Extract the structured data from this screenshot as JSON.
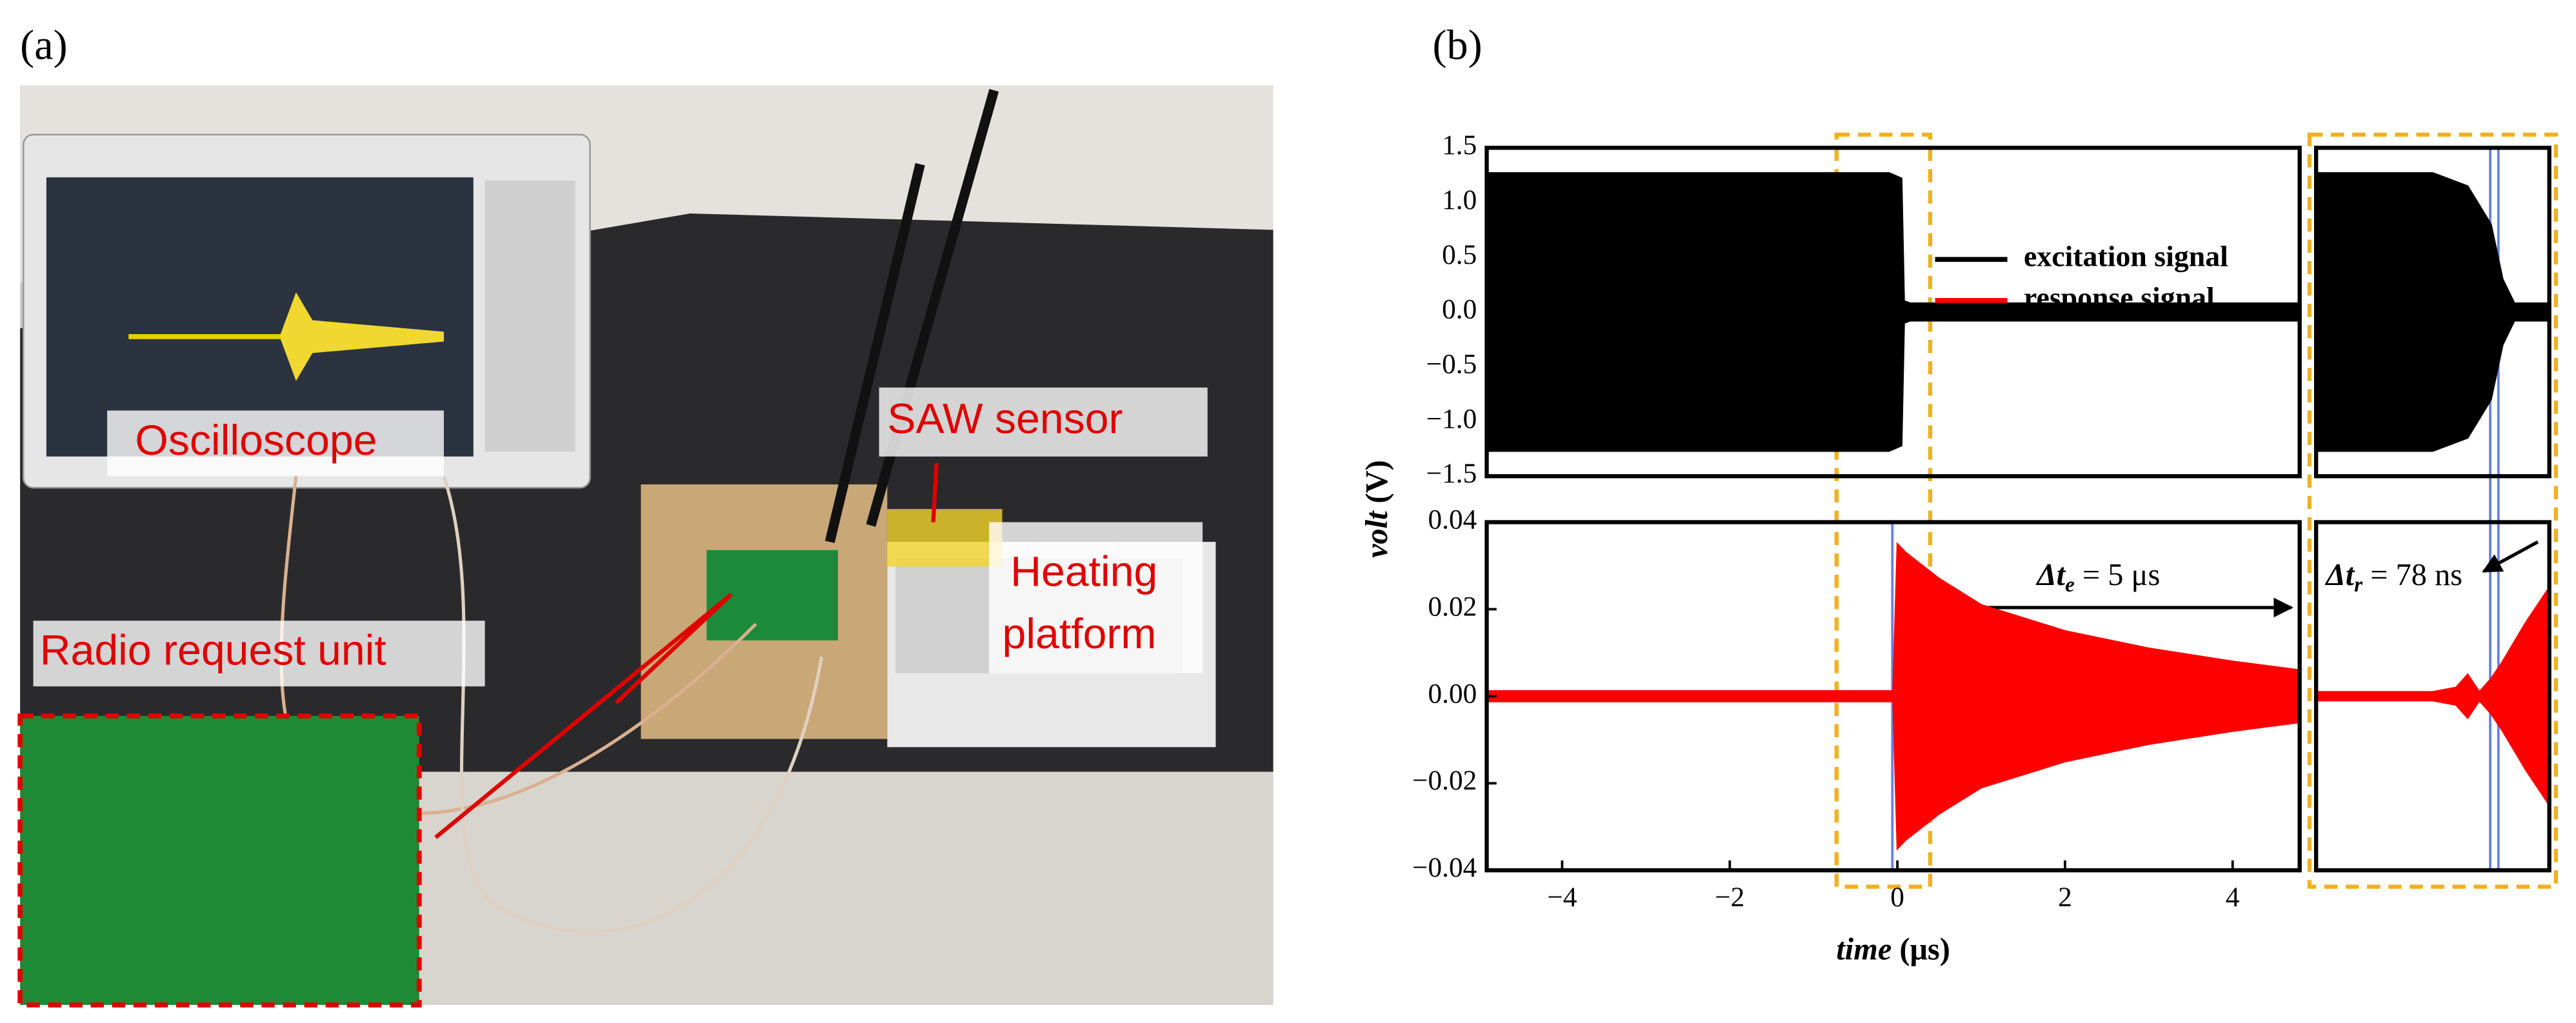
{
  "figure": {
    "panel_labels": [
      "(a)",
      "(b)"
    ],
    "photo_labels": {
      "oscilloscope": "Oscilloscope",
      "saw_sensor": "SAW sensor",
      "radio": "Radio request unit",
      "heating": [
        "Heating",
        "platform"
      ]
    }
  },
  "chart_data": [
    {
      "type": "area",
      "x": [
        -4.9,
        -0.1,
        0.05,
        0.08,
        0.15,
        4.8
      ],
      "series": [
        {
          "name": "excitation signal",
          "color": "#000000",
          "values": [
            1.27,
            1.27,
            1.22,
            0.1,
            0.08,
            0.08
          ]
        }
      ],
      "xlim": [
        -4.9,
        4.8
      ],
      "ylim": [
        -1.5,
        1.5
      ],
      "yticks": [
        1.5,
        {
          "value": 1,
          "label": "1.0"
        },
        0.5,
        {
          "value": 0,
          "label": "0.0"
        },
        {
          "value": -0.5,
          "label": "−0.5"
        },
        {
          "value": -1,
          "label": "−1.0"
        },
        {
          "value": -1.5,
          "label": "−1.5"
        }
      ],
      "ylabel": [
        "volt",
        " (V)"
      ]
    },
    {
      "type": "area",
      "x": [
        -4.9,
        -0.05,
        0,
        0.1,
        0.5,
        1,
        2,
        3,
        4,
        4.8
      ],
      "series": [
        {
          "name": "response signal",
          "color": "#ff0000",
          "values": [
            0.0012,
            0.0012,
            0.035,
            0.033,
            0.027,
            0.021,
            0.015,
            0.011,
            0.008,
            0.006
          ]
        }
      ],
      "xlim": [
        -4.9,
        4.8
      ],
      "ylim": [
        -0.04,
        0.04
      ],
      "yticks": [
        0.04,
        0.02,
        {
          "value": 0,
          "label": "0.00"
        },
        {
          "value": -0.02,
          "label": "−0.02"
        },
        {
          "value": -0.04,
          "label": "−0.04"
        }
      ],
      "xticks": [
        {
          "value": -4,
          "label": "−4"
        },
        {
          "value": -2,
          "label": "−2"
        },
        0,
        2,
        4
      ],
      "xlabel": [
        "time",
        " (μs)"
      ],
      "annotations": [
        [
          "Δt",
          "e",
          " = 5 μs"
        ],
        [
          "Δt",
          "r",
          " = 78 ns"
        ]
      ]
    },
    {
      "type": "area",
      "x": [
        0,
        0.5,
        0.65,
        0.75,
        0.8,
        0.85,
        1
      ],
      "series": [
        {
          "name": "excitation signal",
          "color": "#000000",
          "values": [
            1.27,
            1.27,
            1.15,
            0.8,
            0.3,
            0.08,
            0.08
          ]
        }
      ],
      "xlim": [
        0,
        1
      ],
      "ylim": [
        -1.5,
        1.5
      ]
    },
    {
      "type": "area",
      "x": [
        0,
        0.5,
        0.6,
        0.65,
        0.7,
        0.75,
        0.8,
        0.9,
        1
      ],
      "series": [
        {
          "name": "response signal",
          "color": "#ff0000",
          "values": [
            0.001,
            0.001,
            0.002,
            0.005,
            0.001,
            0.004,
            0.008,
            0.017,
            0.025
          ]
        }
      ],
      "xlim": [
        0,
        1
      ],
      "ylim": [
        -0.04,
        0.04
      ]
    }
  ]
}
